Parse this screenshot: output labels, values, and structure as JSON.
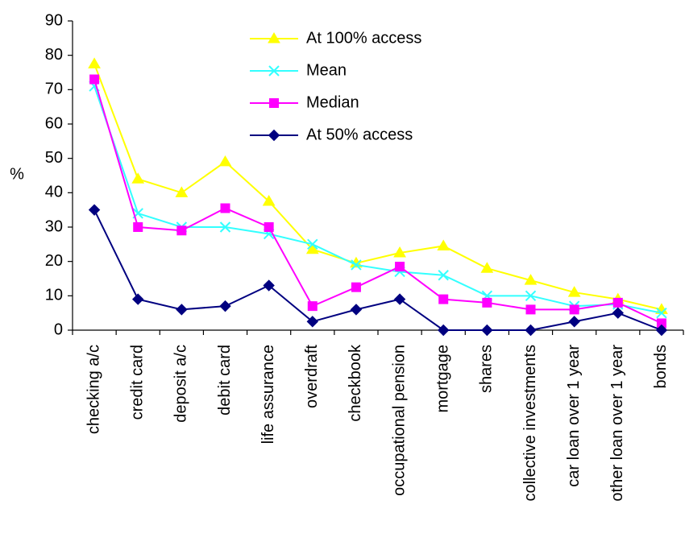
{
  "chart_data": {
    "type": "line",
    "title": "",
    "xlabel": "",
    "ylabel": "%",
    "ylim": [
      0,
      90
    ],
    "yticks": [
      0,
      10,
      20,
      30,
      40,
      50,
      60,
      70,
      80,
      90
    ],
    "grid": false,
    "legend_position": "top-center",
    "categories": [
      "checking a/c",
      "credit card",
      "deposit a/c",
      "debit card",
      "life assurance",
      "overdraft",
      "checkbook",
      "occupational pension",
      "mortgage",
      "shares",
      "collective investments",
      "car loan over 1 year",
      "other loan over 1 year",
      "bonds"
    ],
    "series": [
      {
        "name": "At 100% access",
        "color": "#ffff00",
        "marker": "triangle",
        "values": [
          77.5,
          44,
          40,
          49,
          37.5,
          23.5,
          19.5,
          22.5,
          24.5,
          18,
          14.5,
          11,
          9,
          6
        ]
      },
      {
        "name": "Mean",
        "color": "#33ffff",
        "marker": "x",
        "values": [
          71,
          34,
          30,
          30,
          28,
          25,
          19,
          17,
          16,
          10,
          10,
          7,
          7.5,
          5
        ]
      },
      {
        "name": "Median",
        "color": "#ff00ff",
        "marker": "square",
        "values": [
          73,
          30,
          29,
          35.5,
          30,
          7,
          12.5,
          18.5,
          9,
          8,
          6,
          6,
          8,
          2
        ]
      },
      {
        "name": "At 50% access",
        "color": "#000080",
        "marker": "diamond",
        "values": [
          35,
          9,
          6,
          7,
          13,
          2.5,
          6,
          9,
          0,
          0,
          0,
          2.5,
          5,
          0
        ]
      }
    ]
  }
}
